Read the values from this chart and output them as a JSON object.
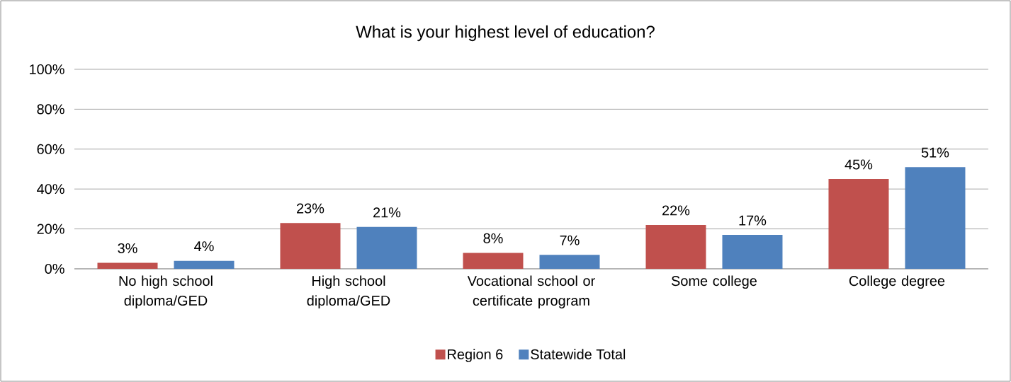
{
  "chart_data": {
    "type": "bar",
    "title": "What is your highest level of education?",
    "categories": [
      "No high school diploma/GED",
      "High school diploma/GED",
      "Vocational school or certificate program",
      "Some college",
      "College degree"
    ],
    "series": [
      {
        "name": "Region 6",
        "color": "#c0504d",
        "values": [
          3,
          23,
          8,
          22,
          45
        ],
        "value_labels": [
          "3%",
          "23%",
          "8%",
          "22%",
          "45%"
        ]
      },
      {
        "name": "Statewide Total",
        "color": "#4f81bd",
        "values": [
          4,
          21,
          7,
          17,
          51
        ],
        "value_labels": [
          "4%",
          "21%",
          "7%",
          "17%",
          "51%"
        ]
      }
    ],
    "ylim": [
      0,
      100
    ],
    "yticks": [
      {
        "value": 0,
        "label": "0%"
      },
      {
        "value": 20,
        "label": "20%"
      },
      {
        "value": 40,
        "label": "40%"
      },
      {
        "value": 60,
        "label": "60%"
      },
      {
        "value": 80,
        "label": "80%"
      },
      {
        "value": 100,
        "label": "100%"
      }
    ],
    "grid": "y",
    "legend": "bottom"
  }
}
